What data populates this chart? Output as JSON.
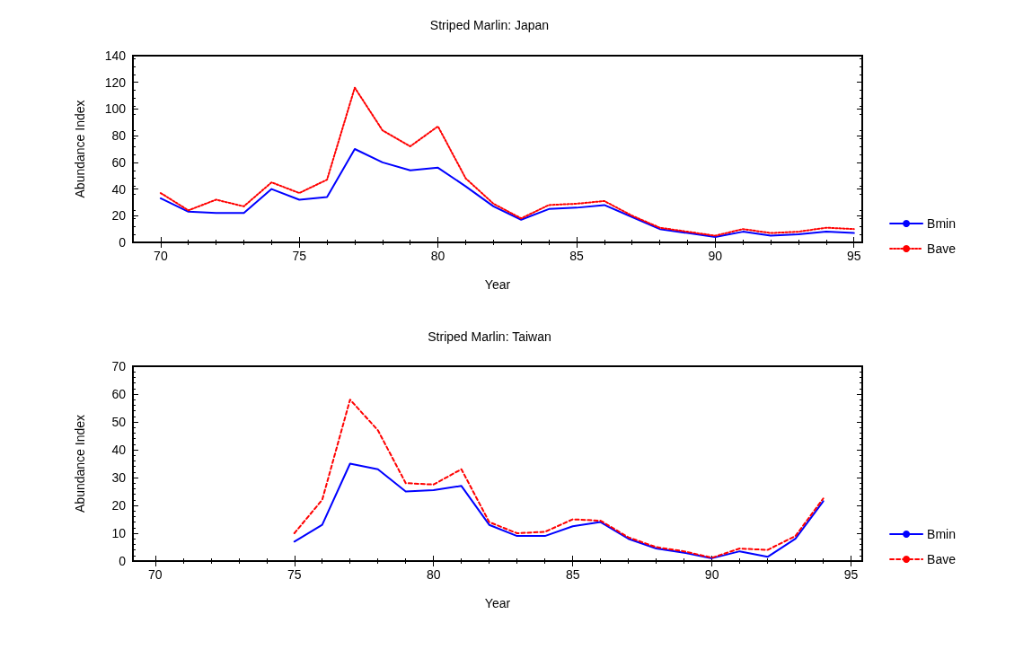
{
  "chart_data": [
    {
      "type": "line",
      "title": "Striped Marlin: Japan",
      "xlabel": "Year",
      "ylabel": "Abundance Index",
      "x": [
        70,
        71,
        72,
        73,
        74,
        75,
        76,
        77,
        78,
        79,
        80,
        81,
        82,
        83,
        84,
        85,
        86,
        87,
        88,
        89,
        90,
        91,
        92,
        93,
        94,
        95
      ],
      "xlim": [
        69,
        95.3
      ],
      "xticks": [
        70,
        75,
        80,
        85,
        90,
        95
      ],
      "ylim": [
        0,
        140
      ],
      "yticks": [
        0,
        20,
        40,
        60,
        80,
        100,
        120,
        140
      ],
      "grid": false,
      "legend": "right",
      "marker": "none",
      "series": [
        {
          "name": "Bmin",
          "color": "#0000ff",
          "line_style": "solid",
          "values": [
            33,
            23,
            22,
            22,
            40,
            32,
            34,
            70,
            60,
            54,
            56,
            42,
            27,
            17,
            25,
            26,
            28,
            19,
            10,
            7,
            4,
            8,
            5,
            6,
            8,
            7
          ]
        },
        {
          "name": "Bave",
          "color": "#ff0000",
          "line_style": "dotted",
          "values": [
            37,
            24,
            32,
            27,
            45,
            37,
            47,
            116,
            84,
            72,
            87,
            48,
            29,
            18,
            28,
            29,
            31,
            20,
            11,
            8,
            5,
            10,
            7,
            8,
            11,
            10
          ]
        }
      ]
    },
    {
      "type": "line",
      "title": "Striped Marlin: Taiwan",
      "xlabel": "Year",
      "ylabel": "Abundance Index",
      "x": [
        75,
        76,
        77,
        78,
        79,
        80,
        81,
        82,
        83,
        84,
        85,
        86,
        87,
        88,
        89,
        90,
        91,
        92,
        93,
        94
      ],
      "xlim": [
        69.2,
        95.4
      ],
      "xticks": [
        70,
        75,
        80,
        85,
        90,
        95
      ],
      "ylim": [
        0,
        70
      ],
      "yticks": [
        0,
        10,
        20,
        30,
        40,
        50,
        60,
        70
      ],
      "grid": false,
      "legend": "right",
      "marker": "none",
      "series": [
        {
          "name": "Bmin",
          "color": "#0000ff",
          "line_style": "solid",
          "values": [
            7,
            13,
            35,
            33,
            25,
            25.5,
            27,
            13,
            9,
            9,
            12.5,
            14,
            8,
            4.5,
            3,
            1,
            3.5,
            1.5,
            8,
            21.5
          ]
        },
        {
          "name": "Bave",
          "color": "#ff0000",
          "line_style": "dashed",
          "values": [
            10,
            22,
            58,
            47,
            28,
            27.5,
            33,
            14,
            10,
            10.5,
            15,
            14.5,
            8.5,
            5,
            3.5,
            1.2,
            4.5,
            4,
            9,
            22.5
          ]
        }
      ]
    }
  ]
}
